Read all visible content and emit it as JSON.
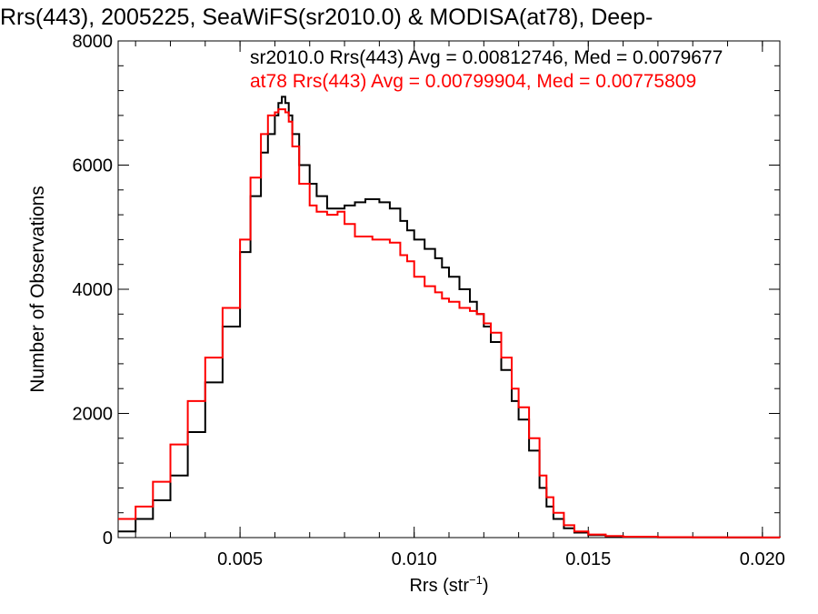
{
  "chart_data": {
    "type": "line",
    "title": "Rrs(443), 2005225, SeaWiFS(sr2010.0) & MODISA(at78), Deep-",
    "xlabel": "Rrs (str",
    "xlabel_sup": "−1",
    "xlabel_close": ")",
    "ylabel": "Number of Observations",
    "xlim": [
      0.0015,
      0.0205
    ],
    "ylim": [
      0,
      8000
    ],
    "xticks": [
      0.005,
      0.01,
      0.015,
      0.02
    ],
    "xtick_labels": [
      "0.005",
      "0.010",
      "0.015",
      "0.020"
    ],
    "yticks": [
      0,
      2000,
      4000,
      6000,
      8000
    ],
    "ytick_labels": [
      "0",
      "2000",
      "4000",
      "6000",
      "8000"
    ],
    "grid": false,
    "legend_placement": "top-right",
    "annotations": [
      {
        "text": "sr2010.0 Rrs(443) Avg = 0.00812746, Med = 0.0079677",
        "color": "#000000"
      },
      {
        "text": "at78 Rrs(443) Avg = 0.00799904, Med = 0.00775809",
        "color": "#ff0000"
      }
    ],
    "series": [
      {
        "name": "sr2010.0",
        "color": "#000000",
        "x": [
          0.0015,
          0.002,
          0.0025,
          0.003,
          0.0035,
          0.004,
          0.0045,
          0.005,
          0.0053,
          0.0056,
          0.0058,
          0.006,
          0.0061,
          0.0062,
          0.0063,
          0.0064,
          0.0065,
          0.0067,
          0.007,
          0.0072,
          0.0075,
          0.0078,
          0.008,
          0.0083,
          0.0086,
          0.0088,
          0.009,
          0.0093,
          0.0096,
          0.0098,
          0.01,
          0.0103,
          0.0106,
          0.0108,
          0.011,
          0.0113,
          0.0116,
          0.0118,
          0.012,
          0.0122,
          0.0125,
          0.0128,
          0.013,
          0.0133,
          0.0136,
          0.0138,
          0.014,
          0.0143,
          0.0146,
          0.015,
          0.0155,
          0.016,
          0.017,
          0.018,
          0.019,
          0.02,
          0.0205
        ],
        "y": [
          100,
          300,
          600,
          1000,
          1700,
          2500,
          3400,
          4600,
          5500,
          6200,
          6500,
          6800,
          7000,
          7100,
          7000,
          6800,
          6500,
          6000,
          5700,
          5500,
          5300,
          5300,
          5350,
          5400,
          5450,
          5450,
          5400,
          5300,
          5100,
          4950,
          4800,
          4650,
          4500,
          4350,
          4200,
          4000,
          3800,
          3600,
          3400,
          3150,
          2700,
          2200,
          1900,
          1400,
          800,
          500,
          300,
          150,
          80,
          40,
          20,
          10,
          5,
          3,
          2,
          1,
          0
        ]
      },
      {
        "name": "at78",
        "color": "#ff0000",
        "x": [
          0.0015,
          0.002,
          0.0025,
          0.003,
          0.0035,
          0.004,
          0.0045,
          0.005,
          0.0053,
          0.0056,
          0.0058,
          0.006,
          0.0061,
          0.0062,
          0.0063,
          0.0064,
          0.0065,
          0.0067,
          0.007,
          0.0072,
          0.0075,
          0.0078,
          0.008,
          0.0083,
          0.0086,
          0.0088,
          0.009,
          0.0093,
          0.0096,
          0.0098,
          0.01,
          0.0103,
          0.0106,
          0.0108,
          0.011,
          0.0113,
          0.0116,
          0.0118,
          0.012,
          0.0122,
          0.0125,
          0.0128,
          0.013,
          0.0133,
          0.0136,
          0.0138,
          0.014,
          0.0143,
          0.0146,
          0.015,
          0.0155,
          0.016,
          0.017,
          0.018,
          0.019,
          0.02,
          0.0205
        ],
        "y": [
          300,
          500,
          900,
          1500,
          2200,
          2900,
          3700,
          4800,
          5800,
          6500,
          6800,
          6850,
          6900,
          6900,
          6850,
          6700,
          6300,
          5700,
          5350,
          5250,
          5200,
          5250,
          5050,
          4850,
          4850,
          4800,
          4800,
          4750,
          4550,
          4450,
          4200,
          4050,
          3950,
          3850,
          3800,
          3700,
          3650,
          3600,
          3450,
          3300,
          2900,
          2400,
          2100,
          1600,
          1000,
          650,
          400,
          200,
          100,
          50,
          25,
          15,
          8,
          5,
          3,
          2,
          0
        ]
      }
    ]
  }
}
